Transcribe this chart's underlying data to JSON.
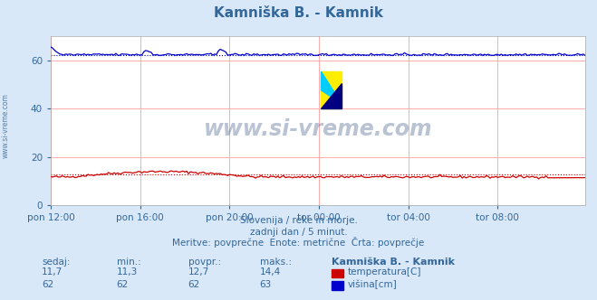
{
  "title": "Kamniška B. - Kamnik",
  "bg_color": "#d8e8f8",
  "plot_bg_color": "#ffffff",
  "grid_color": "#ffaaaa",
  "x_tick_labels": [
    "pon 12:00",
    "pon 16:00",
    "pon 20:00",
    "tor 00:00",
    "tor 04:00",
    "tor 08:00"
  ],
  "x_ticks_pos": [
    0,
    48,
    96,
    144,
    192,
    240
  ],
  "y_ticks": [
    0,
    20,
    40,
    60
  ],
  "ylim": [
    0,
    70
  ],
  "xlim": [
    0,
    287
  ],
  "temp_color": "#cc0000",
  "height_color": "#0000cc",
  "temp_avg": 12.7,
  "height_avg": 62.0,
  "temp_min": 11.3,
  "temp_max": 14.4,
  "height_min": 62,
  "height_max": 63,
  "temp_current": 11.7,
  "height_current": 62,
  "subtitle1": "Slovenija / reke in morje.",
  "subtitle2": "zadnji dan / 5 minut.",
  "subtitle3": "Meritve: povprečne  Enote: metrične  Črta: povprečje",
  "table_headers": [
    "sedaj:",
    "min.:",
    "povpr.:",
    "maks.:",
    "Kamniška B. - Kamnik"
  ],
  "table_row1": [
    "11,7",
    "11,3",
    "12,7",
    "14,4"
  ],
  "table_row2": [
    "62",
    "62",
    "62",
    "63"
  ],
  "label_temp": "temperatura[C]",
  "label_height": "višina[cm]",
  "watermark": "www.si-vreme.com",
  "watermark_color": "#1a3a6e",
  "side_label": "www.si-vreme.com",
  "n_points": 288
}
